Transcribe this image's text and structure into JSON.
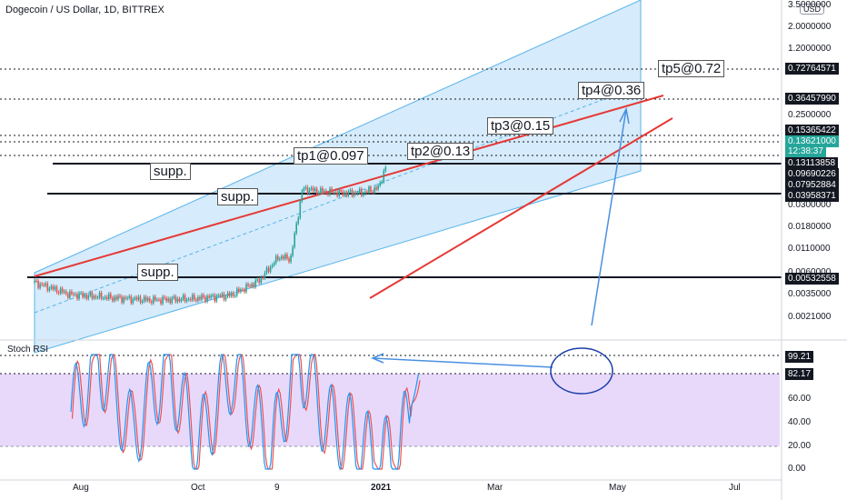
{
  "header": {
    "title": "Dogecoin / US Dollar, 1D, BITTREX",
    "currency": "USD",
    "indicator": "Stoch RSI"
  },
  "colors": {
    "channel_fill": "#d6ebfb",
    "channel_line": "#5ab4ea",
    "trend_line": "#e53935",
    "rsi_band": "#e8d9fb",
    "k_line": "#2196f3",
    "d_line": "#ef5350",
    "up": "#26a69a",
    "down": "#ef5350",
    "current_label": "#26a69a"
  },
  "price_axis": {
    "ticks": [
      "3.5000000",
      "2.0000000",
      "1.2000000",
      "0.2500000",
      "0.0300000",
      "0.0180000",
      "0.0110000",
      "0.0060000",
      "0.0035000",
      "0.0021000"
    ],
    "labels": [
      "0.72764571",
      "0.36457990",
      "0.15365422",
      "0.13621000",
      "0.13113858",
      "0.09690226",
      "0.07952884",
      "0.03958371",
      "0.00532558"
    ],
    "countdown": "12:38:37"
  },
  "rsi_axis": {
    "ticks": [
      "60.00",
      "40.00",
      "20.00",
      "0.00"
    ],
    "labels": [
      "99.21",
      "82.17"
    ]
  },
  "dates": [
    "Aug",
    "Oct",
    "9",
    "2021",
    "Mar",
    "May",
    "Jul"
  ],
  "annotations": {
    "supports": [
      "supp.",
      "supp.",
      "supp."
    ],
    "targets": [
      "tp1@0.097",
      "tp2@0.13",
      "tp3@0.15",
      "tp4@0.36",
      "tp5@0.72"
    ]
  },
  "chart_data": [
    {
      "type": "line",
      "title": "Dogecoin / US Dollar, 1D, BITTREX",
      "x": [
        "2020-07-20",
        "2020-08-15",
        "2020-09-15",
        "2020-10-15",
        "2020-11-15",
        "2020-12-15",
        "2021-01-05",
        "2021-01-20",
        "2021-01-29",
        "2021-02-07",
        "2021-02-20",
        "2021-03-10",
        "2021-03-25",
        "2021-04-05",
        "2021-04-12"
      ],
      "series": [
        {
          "values": [
            0.0046,
            0.0033,
            0.003,
            0.0028,
            0.0029,
            0.0032,
            0.0048,
            0.0095,
            0.009,
            0.065,
            0.06,
            0.057,
            0.058,
            0.066,
            0.13621
          ]
        }
      ],
      "horizontal_levels": [
        0.72764571,
        0.3645799,
        0.15365422,
        0.13113858,
        0.09690226,
        0.07952884,
        0.03958371,
        0.00532558
      ],
      "y_scale": "log"
    },
    {
      "type": "line",
      "title": "Stoch RSI",
      "x": [
        "2020-07-20",
        "2020-08-10",
        "2020-09-05",
        "2020-10-01",
        "2020-10-25",
        "2020-11-20",
        "2020-12-20",
        "2021-01-10",
        "2021-02-01",
        "2021-02-20",
        "2021-03-10",
        "2021-03-28",
        "2021-04-12"
      ],
      "series": [
        {
          "values": [
            50,
            95,
            30,
            90,
            20,
            85,
            15,
            99.21,
            40,
            30,
            8,
            15,
            82.17
          ]
        }
      ],
      "bands": [
        20,
        80
      ],
      "ylim": [
        0,
        100
      ]
    }
  ]
}
